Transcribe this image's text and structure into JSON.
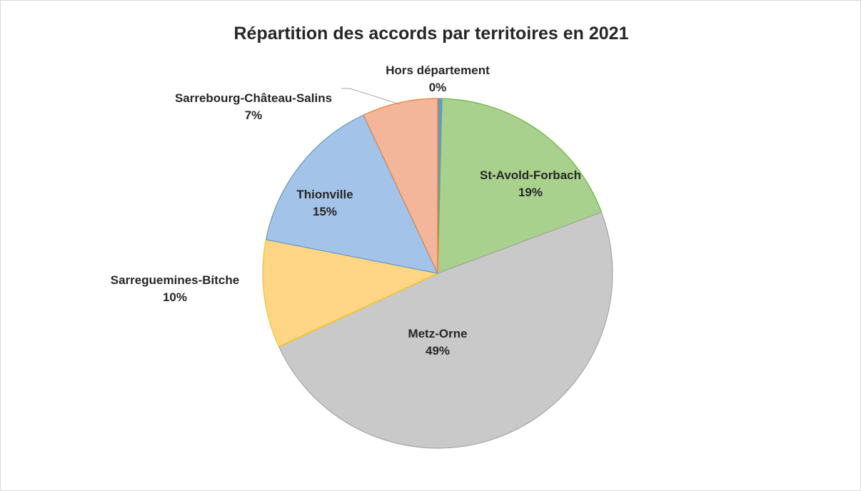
{
  "chart_data": {
    "type": "pie",
    "title": "Répartition des accords par territoires en 2021",
    "categories": [
      "Hors département",
      "St-Avold-Forbach",
      "Metz-Orne",
      "Sarreguemines-Bitche",
      "Thionville",
      "Sarrebourg-Château-Salins"
    ],
    "values": [
      0.4,
      19,
      49,
      10,
      15,
      7
    ],
    "value_labels": [
      "0%",
      "19%",
      "49%",
      "10%",
      "15%",
      "7%"
    ],
    "colors": [
      "#5b9bd5",
      "#a9d18e",
      "#c9c9c9",
      "#ffd685",
      "#a4c3e8",
      "#f4b69a"
    ]
  }
}
